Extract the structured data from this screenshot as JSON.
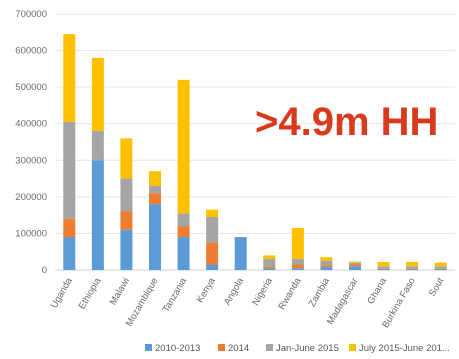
{
  "chart_data": {
    "type": "bar",
    "stacked": true,
    "categories": [
      "Uganda",
      "Ethiopia",
      "Malawi",
      "Mozambique",
      "Tanzania",
      "Kenya",
      "Angola",
      "Nigeria",
      "Rwanda",
      "Zambia",
      "Madagascar",
      "Ghana",
      "Burkina Faso",
      "Sout"
    ],
    "series": [
      {
        "name": "2010-2013",
        "color": "#5b9bd5",
        "values": [
          90000,
          300000,
          110000,
          180000,
          90000,
          15000,
          90000,
          5000,
          5000,
          8000,
          10000,
          3000,
          3000,
          3000
        ]
      },
      {
        "name": "2014",
        "color": "#ed7d31",
        "values": [
          50000,
          0,
          50000,
          30000,
          30000,
          60000,
          0,
          5000,
          10000,
          5000,
          5000,
          2000,
          2000,
          2000
        ]
      },
      {
        "name": "Jan-June 2015",
        "color": "#a5a5a5",
        "values": [
          265000,
          80000,
          90000,
          20000,
          35000,
          70000,
          0,
          20000,
          15000,
          12000,
          5000,
          5000,
          5000,
          5000
        ]
      },
      {
        "name": "July 2015-June 201...",
        "color": "#ffc000",
        "values": [
          240000,
          200000,
          110000,
          40000,
          365000,
          20000,
          0,
          10000,
          85000,
          10000,
          3000,
          12000,
          12000,
          10000
        ]
      }
    ],
    "ylim": [
      0,
      700000
    ],
    "yticks": [
      "0",
      "100000",
      "200000",
      "300000",
      "400000",
      "500000",
      "600000",
      "700000"
    ],
    "grid": true,
    "legend_position": "bottom",
    "annotation": ">4.9m HH",
    "annotation_color": "#d93a1e"
  }
}
